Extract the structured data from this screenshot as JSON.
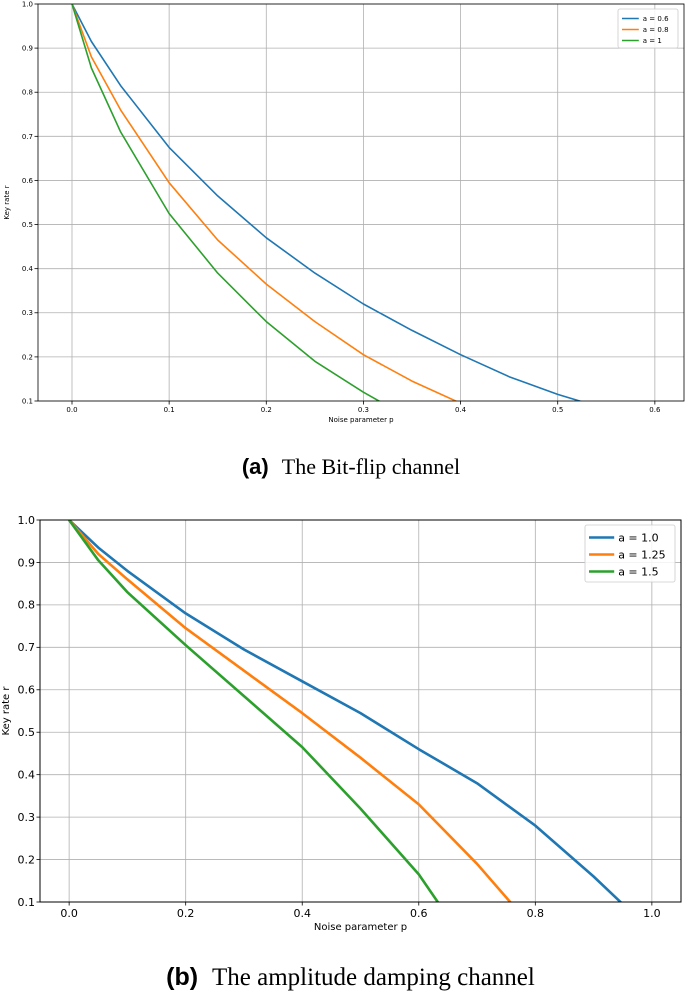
{
  "charts": [
    {
      "type": "line",
      "xlabel": "Noise parameter p",
      "ylabel": "Key rate r",
      "xlim": [
        -0.035,
        0.63
      ],
      "ylim": [
        0.1,
        1.0
      ],
      "xticks": [
        "0.0",
        "0.1",
        "0.2",
        "0.3",
        "0.4",
        "0.5",
        "0.6"
      ],
      "yticks": [
        "0.1",
        "0.2",
        "0.3",
        "0.4",
        "0.5",
        "0.6",
        "0.7",
        "0.8",
        "0.9",
        "1.0"
      ],
      "grid": true,
      "legend_position": "top-right",
      "series": [
        {
          "name": "a = 0.6",
          "color": "#1f77b4",
          "x": [
            0,
            0.02,
            0.05,
            0.1,
            0.15,
            0.2,
            0.25,
            0.3,
            0.35,
            0.4,
            0.45,
            0.5,
            0.53
          ],
          "y": [
            1.0,
            0.915,
            0.815,
            0.675,
            0.565,
            0.47,
            0.39,
            0.32,
            0.26,
            0.205,
            0.155,
            0.115,
            0.095
          ]
        },
        {
          "name": "a = 0.8",
          "color": "#ff7f0e",
          "x": [
            0,
            0.02,
            0.05,
            0.1,
            0.15,
            0.2,
            0.25,
            0.3,
            0.35,
            0.4
          ],
          "y": [
            1.0,
            0.88,
            0.76,
            0.595,
            0.465,
            0.365,
            0.28,
            0.205,
            0.145,
            0.095
          ]
        },
        {
          "name": "a = 1",
          "color": "#2ca02c",
          "x": [
            0,
            0.02,
            0.05,
            0.1,
            0.15,
            0.2,
            0.25,
            0.3,
            0.32
          ],
          "y": [
            1.0,
            0.855,
            0.71,
            0.525,
            0.39,
            0.28,
            0.19,
            0.12,
            0.095
          ]
        }
      ],
      "caption_label": "(a)",
      "caption_text": "The Bit-flip channel"
    },
    {
      "type": "line",
      "xlabel": "Noise parameter p",
      "ylabel": "Key rate r",
      "xlim": [
        -0.05,
        1.05
      ],
      "ylim": [
        0.1,
        1.0
      ],
      "xticks": [
        "0.0",
        "0.2",
        "0.4",
        "0.6",
        "0.8",
        "1.0"
      ],
      "yticks": [
        "0.1",
        "0.2",
        "0.3",
        "0.4",
        "0.5",
        "0.6",
        "0.7",
        "0.8",
        "0.9",
        "1.0"
      ],
      "grid": true,
      "legend_position": "top-right",
      "series": [
        {
          "name": "a = 1.0",
          "color": "#1f77b4",
          "x": [
            0,
            0.05,
            0.1,
            0.2,
            0.3,
            0.4,
            0.5,
            0.6,
            0.7,
            0.8,
            0.9,
            0.95
          ],
          "y": [
            1.0,
            0.935,
            0.88,
            0.78,
            0.695,
            0.62,
            0.545,
            0.46,
            0.38,
            0.28,
            0.16,
            0.095
          ]
        },
        {
          "name": "a = 1.25",
          "color": "#ff7f0e",
          "x": [
            0,
            0.05,
            0.1,
            0.2,
            0.3,
            0.4,
            0.5,
            0.6,
            0.7,
            0.76
          ],
          "y": [
            1.0,
            0.92,
            0.86,
            0.745,
            0.645,
            0.545,
            0.44,
            0.33,
            0.19,
            0.095
          ]
        },
        {
          "name": "a = 1.5",
          "color": "#2ca02c",
          "x": [
            0,
            0.05,
            0.1,
            0.2,
            0.3,
            0.4,
            0.5,
            0.6,
            0.635
          ],
          "y": [
            1.0,
            0.905,
            0.83,
            0.705,
            0.585,
            0.465,
            0.32,
            0.165,
            0.095
          ]
        }
      ],
      "caption_label": "(b)",
      "caption_text": "The amplitude damping channel"
    }
  ]
}
